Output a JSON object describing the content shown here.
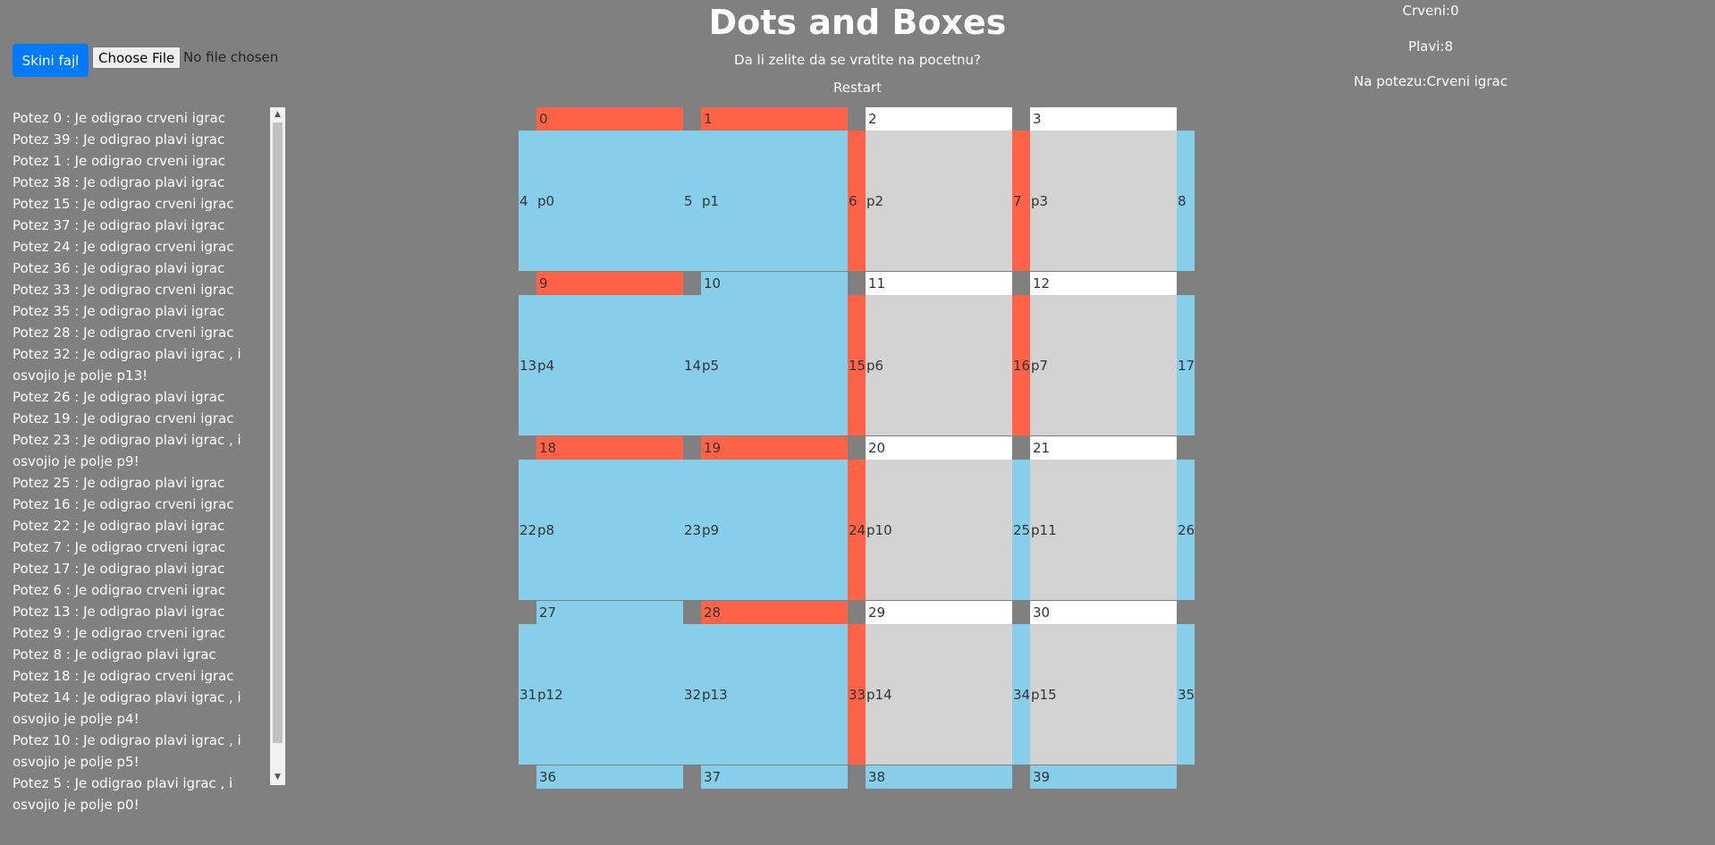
{
  "header": {
    "title": "Dots and Boxes",
    "question": "Da li zelite da se vratite na pocetnu?",
    "restart_label": "Restart"
  },
  "scores": {
    "red": "Crveni:0",
    "blue": "Plavi:8",
    "turn": "Na potezu:Crveni igrac"
  },
  "file": {
    "download_label": "Skini fajl",
    "choose_label": "Choose File",
    "status": "No file chosen"
  },
  "colors": {
    "background": "#808080",
    "red": "#ff6347",
    "blue": "#87ceeb",
    "empty_line": "#ffffff",
    "empty_box": "#d3d3d3",
    "button": "#007bff"
  },
  "log": [
    "Potez 0 : Je odigrao crveni igrac",
    "Potez 39 : Je odigrao plavi igrac",
    "Potez 1 : Je odigrao crveni igrac",
    "Potez 38 : Je odigrao plavi igrac",
    "Potez 15 : Je odigrao crveni igrac",
    "Potez 37 : Je odigrao plavi igrac",
    "Potez 24 : Je odigrao crveni igrac",
    "Potez 36 : Je odigrao plavi igrac",
    "Potez 33 : Je odigrao crveni igrac",
    "Potez 35 : Je odigrao plavi igrac",
    "Potez 28 : Je odigrao crveni igrac",
    "Potez 32 : Je odigrao plavi igrac , i osvojio je polje p13!",
    "Potez 26 : Je odigrao plavi igrac",
    "Potez 19 : Je odigrao crveni igrac",
    "Potez 23 : Je odigrao plavi igrac , i osvojio je polje p9!",
    "Potez 25 : Je odigrao plavi igrac",
    "Potez 16 : Je odigrao crveni igrac",
    "Potez 22 : Je odigrao plavi igrac",
    "Potez 7 : Je odigrao crveni igrac",
    "Potez 17 : Je odigrao plavi igrac",
    "Potez 6 : Je odigrao crveni igrac",
    "Potez 13 : Je odigrao plavi igrac",
    "Potez 9 : Je odigrao crveni igrac",
    "Potez 8 : Je odigrao plavi igrac",
    "Potez 18 : Je odigrao crveni igrac",
    "Potez 14 : Je odigrao plavi igrac , i osvojio je polje p4!",
    "Potez 10 : Je odigrao plavi igrac , i osvojio je polje p5!",
    "Potez 5 : Je odigrao plavi igrac , i osvojio je polje p0!"
  ],
  "board": {
    "grid_size": 4,
    "lines": [
      {
        "label": "0",
        "owner": "red"
      },
      {
        "label": "1",
        "owner": "red"
      },
      {
        "label": "2",
        "owner": "none"
      },
      {
        "label": "3",
        "owner": "none"
      },
      {
        "label": "4",
        "owner": "blue"
      },
      {
        "label": "5",
        "owner": "blue"
      },
      {
        "label": "6",
        "owner": "red"
      },
      {
        "label": "7",
        "owner": "red"
      },
      {
        "label": "8",
        "owner": "blue"
      },
      {
        "label": "9",
        "owner": "red"
      },
      {
        "label": "10",
        "owner": "blue"
      },
      {
        "label": "11",
        "owner": "none"
      },
      {
        "label": "12",
        "owner": "none"
      },
      {
        "label": "13",
        "owner": "blue"
      },
      {
        "label": "14",
        "owner": "blue"
      },
      {
        "label": "15",
        "owner": "red"
      },
      {
        "label": "16",
        "owner": "red"
      },
      {
        "label": "17",
        "owner": "blue"
      },
      {
        "label": "18",
        "owner": "red"
      },
      {
        "label": "19",
        "owner": "red"
      },
      {
        "label": "20",
        "owner": "none"
      },
      {
        "label": "21",
        "owner": "none"
      },
      {
        "label": "22",
        "owner": "blue"
      },
      {
        "label": "23",
        "owner": "blue"
      },
      {
        "label": "24",
        "owner": "red"
      },
      {
        "label": "25",
        "owner": "blue"
      },
      {
        "label": "26",
        "owner": "blue"
      },
      {
        "label": "27",
        "owner": "blue"
      },
      {
        "label": "28",
        "owner": "red"
      },
      {
        "label": "29",
        "owner": "none"
      },
      {
        "label": "30",
        "owner": "none"
      },
      {
        "label": "31",
        "owner": "blue"
      },
      {
        "label": "32",
        "owner": "blue"
      },
      {
        "label": "33",
        "owner": "red"
      },
      {
        "label": "34",
        "owner": "blue"
      },
      {
        "label": "35",
        "owner": "blue"
      },
      {
        "label": "36",
        "owner": "blue"
      },
      {
        "label": "37",
        "owner": "blue"
      },
      {
        "label": "38",
        "owner": "blue"
      },
      {
        "label": "39",
        "owner": "blue"
      }
    ],
    "boxes": [
      {
        "label": "p0",
        "owner": "blue"
      },
      {
        "label": "p1",
        "owner": "blue"
      },
      {
        "label": "p2",
        "owner": "none"
      },
      {
        "label": "p3",
        "owner": "none"
      },
      {
        "label": "p4",
        "owner": "blue"
      },
      {
        "label": "p5",
        "owner": "blue"
      },
      {
        "label": "p6",
        "owner": "none"
      },
      {
        "label": "p7",
        "owner": "none"
      },
      {
        "label": "p8",
        "owner": "blue"
      },
      {
        "label": "p9",
        "owner": "blue"
      },
      {
        "label": "p10",
        "owner": "none"
      },
      {
        "label": "p11",
        "owner": "none"
      },
      {
        "label": "p12",
        "owner": "blue"
      },
      {
        "label": "p13",
        "owner": "blue"
      },
      {
        "label": "p14",
        "owner": "none"
      },
      {
        "label": "p15",
        "owner": "none"
      }
    ]
  }
}
